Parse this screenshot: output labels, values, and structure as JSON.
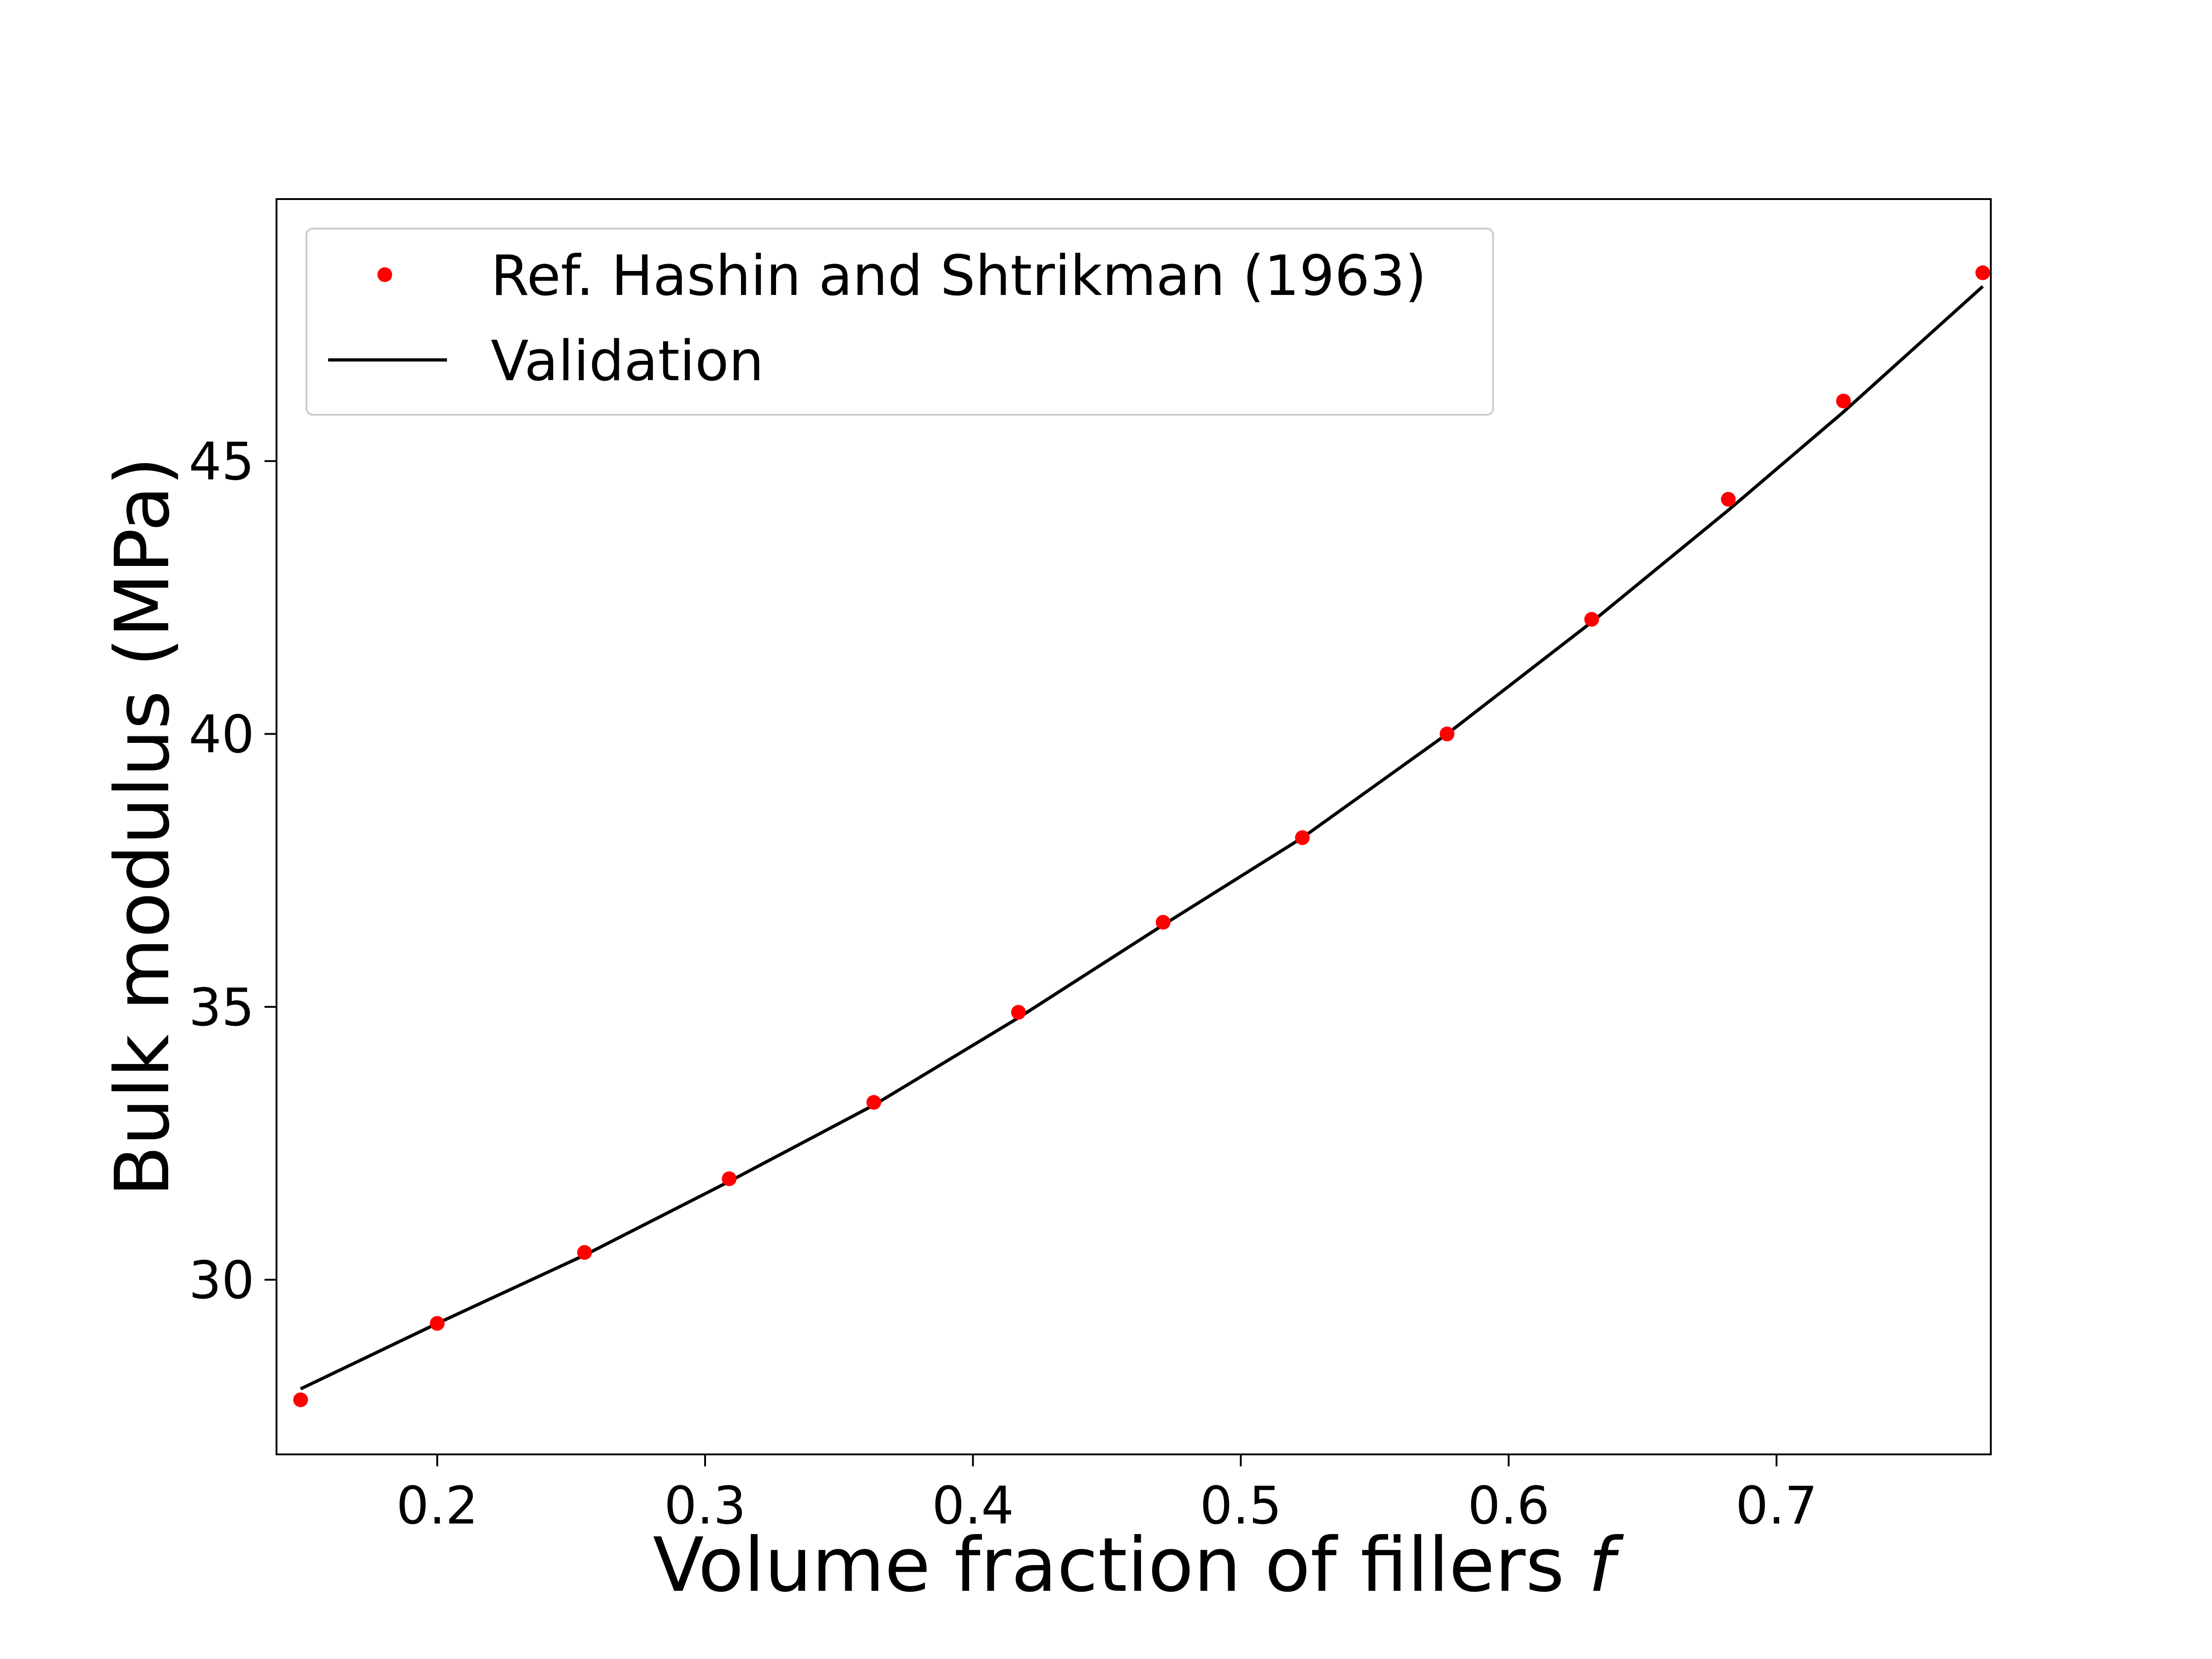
{
  "chart_data": {
    "type": "scatter",
    "title": "",
    "xlabel": "Volume fraction of fillers",
    "xlabel_symbol": "f",
    "ylabel": "Bulk modulus (MPa)",
    "xlim": [
      0.14,
      0.78
    ],
    "ylim": [
      26.8,
      49.8
    ],
    "x_ticks": [
      0.2,
      0.3,
      0.4,
      0.5,
      0.6,
      0.7
    ],
    "x_tick_labels": [
      "0.2",
      "0.3",
      "0.4",
      "0.5",
      "0.6",
      "0.7"
    ],
    "y_ticks": [
      30,
      35,
      40,
      45
    ],
    "y_tick_labels": [
      "30",
      "35",
      "40",
      "45"
    ],
    "grid": false,
    "legend_position": "top-left",
    "series": [
      {
        "name": "Ref. Hashin and Shtrikman (1963)",
        "kind": "points",
        "color": "#ff0000",
        "x": [
          0.149,
          0.2,
          0.255,
          0.309,
          0.363,
          0.417,
          0.471,
          0.523,
          0.577,
          0.631,
          0.682,
          0.725,
          0.777
        ],
        "y": [
          27.8,
          29.2,
          30.5,
          31.85,
          33.25,
          34.9,
          36.55,
          38.1,
          40.0,
          42.1,
          44.3,
          46.1,
          48.45
        ]
      },
      {
        "name": "Validation",
        "kind": "line",
        "color": "#000000",
        "x": [
          0.149,
          0.2,
          0.255,
          0.309,
          0.363,
          0.417,
          0.471,
          0.523,
          0.577,
          0.631,
          0.682,
          0.725,
          0.777
        ],
        "y": [
          28.0,
          29.2,
          30.45,
          31.8,
          33.2,
          34.8,
          36.5,
          38.1,
          40.0,
          42.05,
          44.1,
          45.9,
          48.2
        ]
      }
    ]
  }
}
